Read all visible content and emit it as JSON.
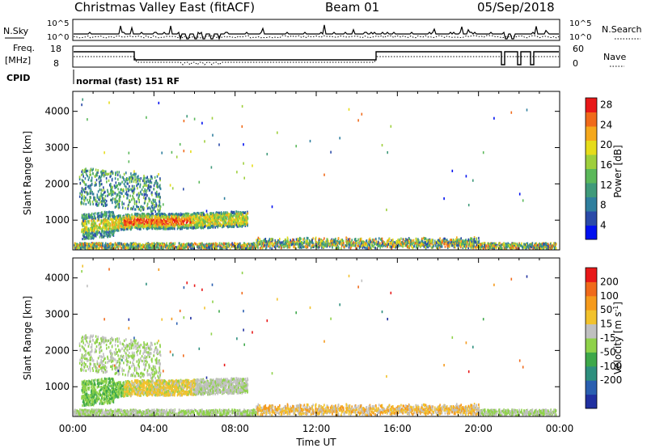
{
  "header": {
    "title": "Christmas Valley East (fitACF)",
    "beam": "Beam 01",
    "date": "05/Sep/2018"
  },
  "status_panels": {
    "nsky_label": "N.Sky",
    "nsearch_label": "N.Search",
    "nsky_ticks": [
      "10^5",
      "10^0"
    ],
    "nsearch_ticks": [
      "10^5",
      "10^0"
    ],
    "freq_label_1": "Freq.",
    "freq_label_2": "[MHz]",
    "freq_ticks": [
      "18",
      "8"
    ],
    "nave_label": "Nave",
    "nave_ticks": [
      "60",
      "0"
    ],
    "cpid_label": "CPID",
    "cpid_value": "normal (fast) 151 RF"
  },
  "chart_data": [
    {
      "type": "heatmap",
      "name": "power",
      "ylabel": "Slant Range [km]",
      "yticks": [
        1000,
        2000,
        3000,
        4000
      ],
      "ylim": [
        180,
        4550
      ],
      "colorbar": {
        "label": "Power [dB]",
        "ticks": [
          "4",
          "8",
          "12",
          "16",
          "20",
          "24",
          "28"
        ],
        "colors": [
          "#0010f0",
          "#2a4aa8",
          "#2f7f9e",
          "#3f9a7a",
          "#5bb85a",
          "#9ecf3c",
          "#e6dc1a",
          "#f5a81c",
          "#f06a1a",
          "#e81818"
        ]
      }
    },
    {
      "type": "heatmap",
      "name": "velocity",
      "ylabel": "Slant Range [km]",
      "yticks": [
        1000,
        2000,
        3000,
        4000
      ],
      "ylim": [
        180,
        4550
      ],
      "xlabel": "Time UT",
      "xticks": [
        "00:00",
        "04:00",
        "08:00",
        "12:00",
        "16:00",
        "20:00",
        "00:00"
      ],
      "xlim_hours": [
        0,
        24
      ],
      "colorbar": {
        "label_main": "Velocity [m s",
        "label_exp": "-1",
        "label_end": "]",
        "ticks": [
          "200",
          "100",
          "50",
          "15",
          "-15",
          "-50",
          "-100",
          "-200"
        ],
        "colors": [
          "#2030a0",
          "#2a5fb0",
          "#2e8f7e",
          "#3ea84a",
          "#8fd24a",
          "#c0c0c0",
          "#f2c22c",
          "#f59a1c",
          "#f06a1a",
          "#e81818"
        ]
      }
    }
  ]
}
